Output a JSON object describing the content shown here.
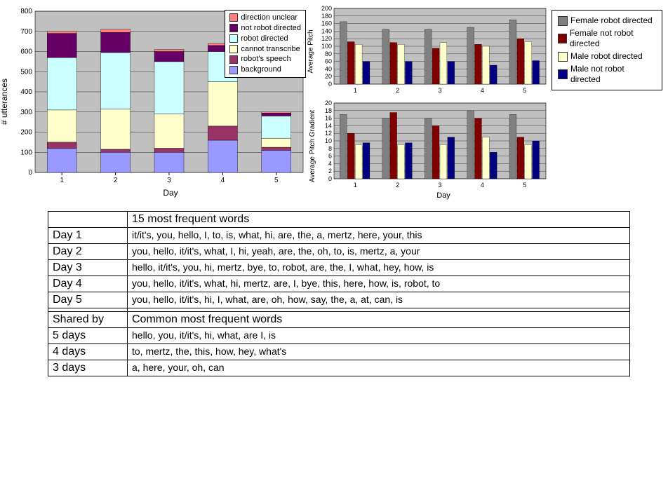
{
  "stacked_chart": {
    "type": "stacked-bar",
    "ylabel": "# utterances",
    "xlabel": "Day",
    "categories": [
      "1",
      "2",
      "3",
      "4",
      "5"
    ],
    "ylim": [
      0,
      800
    ],
    "ytick_step": 100,
    "plot_bg": "#c0c0c0",
    "grid_color": "#000000",
    "series_order": [
      "background",
      "robots_speech",
      "cannot_transcribe",
      "robot_directed",
      "not_robot_directed",
      "direction_unclear"
    ],
    "colors": {
      "background": "#9999ff",
      "robots_speech": "#993366",
      "cannot_transcribe": "#ffffcc",
      "robot_directed": "#ccffff",
      "not_robot_directed": "#660066",
      "direction_unclear": "#ff8080"
    },
    "legend_labels": {
      "direction_unclear": "direction unclear",
      "not_robot_directed": "not robot directed",
      "robot_directed": "robot directed",
      "cannot_transcribe": "cannot transcribe",
      "robots_speech": "robot's speech",
      "background": "background"
    },
    "data": {
      "1": {
        "background": 120,
        "robots_speech": 30,
        "cannot_transcribe": 160,
        "robot_directed": 260,
        "not_robot_directed": 120,
        "direction_unclear": 10
      },
      "2": {
        "background": 100,
        "robots_speech": 15,
        "cannot_transcribe": 200,
        "robot_directed": 280,
        "not_robot_directed": 100,
        "direction_unclear": 15
      },
      "3": {
        "background": 100,
        "robots_speech": 20,
        "cannot_transcribe": 170,
        "robot_directed": 260,
        "not_robot_directed": 50,
        "direction_unclear": 10
      },
      "4": {
        "background": 160,
        "robots_speech": 70,
        "cannot_transcribe": 220,
        "robot_directed": 150,
        "not_robot_directed": 30,
        "direction_unclear": 10
      },
      "5": {
        "background": 110,
        "robots_speech": 15,
        "cannot_transcribe": 45,
        "robot_directed": 110,
        "not_robot_directed": 15,
        "direction_unclear": 5
      }
    },
    "bar_width": 0.55
  },
  "pitch_chart": {
    "type": "grouped-bar",
    "ylabel": "Average Pitch",
    "categories": [
      "1",
      "2",
      "3",
      "4",
      "5"
    ],
    "ylim": [
      0,
      200
    ],
    "ytick_step": 20,
    "plot_bg": "#c0c0c0",
    "series": [
      "female_robot",
      "female_not_robot",
      "male_robot",
      "male_not_robot"
    ],
    "colors": {
      "female_robot": "#808080",
      "female_not_robot": "#800000",
      "male_robot": "#ffffcc",
      "male_not_robot": "#000080"
    },
    "data": {
      "1": {
        "female_robot": 165,
        "female_not_robot": 112,
        "male_robot": 105,
        "male_not_robot": 60
      },
      "2": {
        "female_robot": 145,
        "female_not_robot": 110,
        "male_robot": 105,
        "male_not_robot": 60
      },
      "3": {
        "female_robot": 145,
        "female_not_robot": 95,
        "male_robot": 110,
        "male_not_robot": 60
      },
      "4": {
        "female_robot": 150,
        "female_not_robot": 105,
        "male_robot": 100,
        "male_not_robot": 50
      },
      "5": {
        "female_robot": 170,
        "female_not_robot": 120,
        "male_robot": 112,
        "male_not_robot": 62
      }
    }
  },
  "gradient_chart": {
    "type": "grouped-bar",
    "ylabel": "Average Pitch Gradient",
    "xlabel": "Day",
    "categories": [
      "1",
      "2",
      "3",
      "4",
      "5"
    ],
    "ylim": [
      0,
      20
    ],
    "ytick_step": 2,
    "plot_bg": "#c0c0c0",
    "series": [
      "female_robot",
      "female_not_robot",
      "male_robot",
      "male_not_robot"
    ],
    "colors": {
      "female_robot": "#808080",
      "female_not_robot": "#800000",
      "male_robot": "#ffffcc",
      "male_not_robot": "#000080"
    },
    "data": {
      "1": {
        "female_robot": 17,
        "female_not_robot": 12,
        "male_robot": 9,
        "male_not_robot": 9.5
      },
      "2": {
        "female_robot": 16,
        "female_not_robot": 17.5,
        "male_robot": 9,
        "male_not_robot": 9.5
      },
      "3": {
        "female_robot": 16,
        "female_not_robot": 14,
        "male_robot": 9,
        "male_not_robot": 11
      },
      "4": {
        "female_robot": 18,
        "female_not_robot": 16,
        "male_robot": 11,
        "male_not_robot": 7
      },
      "5": {
        "female_robot": 17,
        "female_not_robot": 11,
        "male_robot": 9,
        "male_not_robot": 10
      }
    }
  },
  "right_legend": {
    "female_robot": "Female robot directed",
    "female_not_robot": "Female not robot directed",
    "male_robot": "Male robot directed",
    "male_not_robot": "Male not robot directed"
  },
  "words_table": {
    "header1": "15 most frequent words",
    "rows1": [
      {
        "label": "Day 1",
        "words": "it/it's, you, hello, I, to, is, what, hi, are, the, a, mertz, here, your, this"
      },
      {
        "label": "Day 2",
        "words": "you, hello, it/it's, what, I, hi, yeah, are, the, oh, to, is, mertz, a, your"
      },
      {
        "label": "Day 3",
        "words": "hello, it/it's, you, hi, mertz, bye, to, robot, are, the, I, what, hey, how, is"
      },
      {
        "label": "Day 4",
        "words": "you, hello, it/it's, what, hi, mertz, are, I, bye, this, here, how, is, robot, to"
      },
      {
        "label": "Day 5",
        "words": "you, hello, it/it's, hi, I, what, are, oh, how, say, the, a, at, can, is"
      }
    ],
    "shared_label": "Shared by",
    "header2": "Common most frequent words",
    "rows2": [
      {
        "label": "5 days",
        "words": "hello, you, it/it's, hi, what, are I, is"
      },
      {
        "label": "4 days",
        "words": "to, mertz, the, this, how, hey, what's"
      },
      {
        "label": "3 days",
        "words": "a, here, your, oh, can"
      }
    ]
  }
}
